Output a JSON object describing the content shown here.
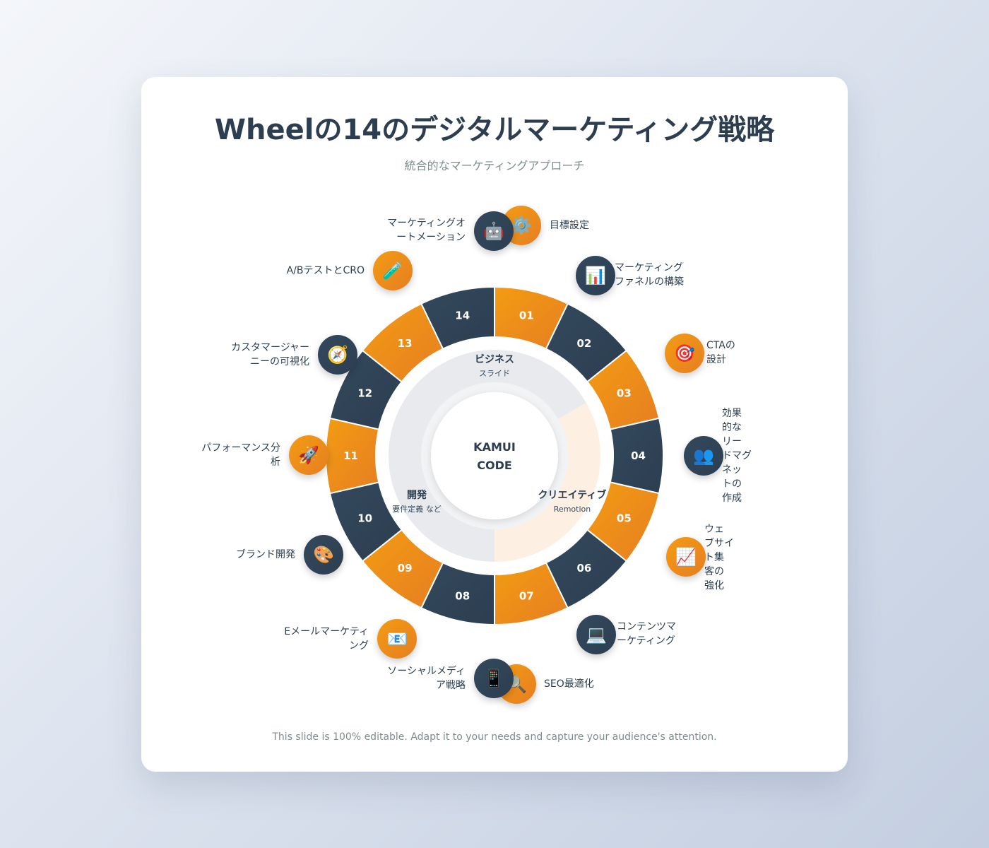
{
  "title": "Wheelの14のデジタルマーケティング戦略",
  "subtitle": "統合的なマーケティングアプローチ",
  "footer": "This slide is 100% editable. Adapt it to your needs and capture your audience's attention.",
  "center": {
    "line1": "KAMUI",
    "line2": "CODE"
  },
  "quadrants": [
    {
      "title": "ビジネス",
      "sub": "スライド"
    },
    {
      "title": "クリエイティブ",
      "sub": "Remotion"
    },
    {
      "title": "開発",
      "sub": "要件定義 など"
    }
  ],
  "segments": [
    "01",
    "02",
    "03",
    "04",
    "05",
    "06",
    "07",
    "08",
    "09",
    "10",
    "11",
    "12",
    "13",
    "14"
  ],
  "colors": {
    "orange": "#f39c12",
    "navy": "#2c3e50"
  },
  "items": [
    {
      "label": "目標設定",
      "icon": "⚙️",
      "icon_name": "gear-icon"
    },
    {
      "label": "マーケティング\nファネルの構築",
      "icon": "📊",
      "icon_name": "bar-chart-icon"
    },
    {
      "label": "CTAの\n設計",
      "icon": "🎯",
      "icon_name": "target-icon"
    },
    {
      "label": "効果\n的な\nリー\nドマグ\nネッ\nトの\n作成",
      "icon": "👥",
      "icon_name": "people-icon"
    },
    {
      "label": "ウェ\nブサイ\nト集\n客の\n強化",
      "icon": "📈",
      "icon_name": "trend-up-icon"
    },
    {
      "label": "コンテンツマ\nーケティング",
      "icon": "💻",
      "icon_name": "laptop-icon"
    },
    {
      "label": "SEO最適化",
      "icon": "🔍",
      "icon_name": "magnifier-icon"
    },
    {
      "label": "ソーシャルメディ\nア戦略",
      "icon": "📱",
      "icon_name": "phone-icon"
    },
    {
      "label": "Eメールマーケティ\nング",
      "icon": "📧",
      "icon_name": "email-icon"
    },
    {
      "label": "ブランド開発",
      "icon": "🎨",
      "icon_name": "palette-icon"
    },
    {
      "label": "パフォーマンス分\n析",
      "icon": "🚀",
      "icon_name": "rocket-icon"
    },
    {
      "label": "カスタマージャー\nニーの可視化",
      "icon": "🧭",
      "icon_name": "compass-icon"
    },
    {
      "label": "A/BテストとCRO",
      "icon": "🧪",
      "icon_name": "test-tube-icon"
    },
    {
      "label": "マーケティングオ\nートメーション",
      "icon": "🤖",
      "icon_name": "robot-icon"
    }
  ]
}
